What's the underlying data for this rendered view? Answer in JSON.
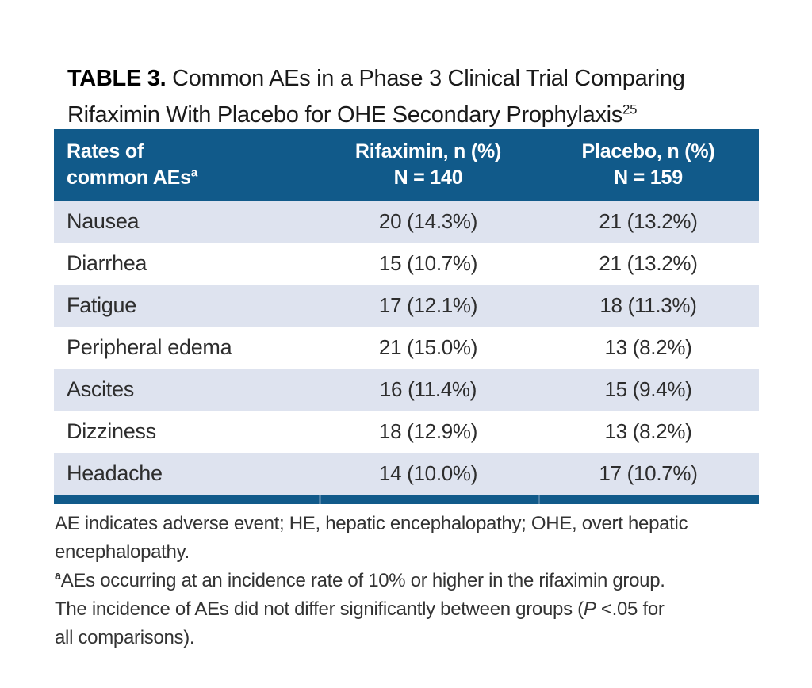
{
  "title": {
    "label": "TABLE 3.",
    "line1": "Common AEs in a Phase 3 Clinical Trial Comparing",
    "line2": "Rifaximin With Placebo for OHE Secondary Prophylaxis",
    "reference": "25"
  },
  "table": {
    "header": {
      "col1_line1": "Rates of",
      "col1_line2": "common AEs",
      "col1_sup": "a",
      "col2_line1": "Rifaximin, n (%)",
      "col2_line2": "N = 140",
      "col3_line1": "Placebo, n (%)",
      "col3_line2": "N = 159"
    },
    "rows": [
      {
        "label": "Nausea",
        "rifaximin": "20 (14.3%)",
        "placebo": "21 (13.2%)"
      },
      {
        "label": "Diarrhea",
        "rifaximin": "15 (10.7%)",
        "placebo": "21 (13.2%)"
      },
      {
        "label": "Fatigue",
        "rifaximin": "17 (12.1%)",
        "placebo": "18 (11.3%)"
      },
      {
        "label": "Peripheral edema",
        "rifaximin": "21 (15.0%)",
        "placebo": "13 (8.2%)"
      },
      {
        "label": "Ascites",
        "rifaximin": "16 (11.4%)",
        "placebo": "15 (9.4%)"
      },
      {
        "label": "Dizziness",
        "rifaximin": "18 (12.9%)",
        "placebo": "13 (8.2%)"
      },
      {
        "label": "Headache",
        "rifaximin": "14 (10.0%)",
        "placebo": "17 (10.7%)"
      }
    ]
  },
  "footnotes": {
    "line1": "AE indicates adverse event; HE, hepatic encephalopathy; OHE, overt hepatic",
    "line2": "encephalopathy.",
    "line3_sup": "a",
    "line3": "AEs occurring at an incidence rate of 10% or higher in the rifaximin group.",
    "line4_pre": "The incidence of AEs did not differ significantly between groups (",
    "line4_italic": "P",
    "line4_post": " <.05 for",
    "line5": "all comparisons)."
  },
  "colors": {
    "header_blue": "#115a8a",
    "row_shade": "#dee3ef",
    "bottom_rule_blue": "#115a8a"
  }
}
